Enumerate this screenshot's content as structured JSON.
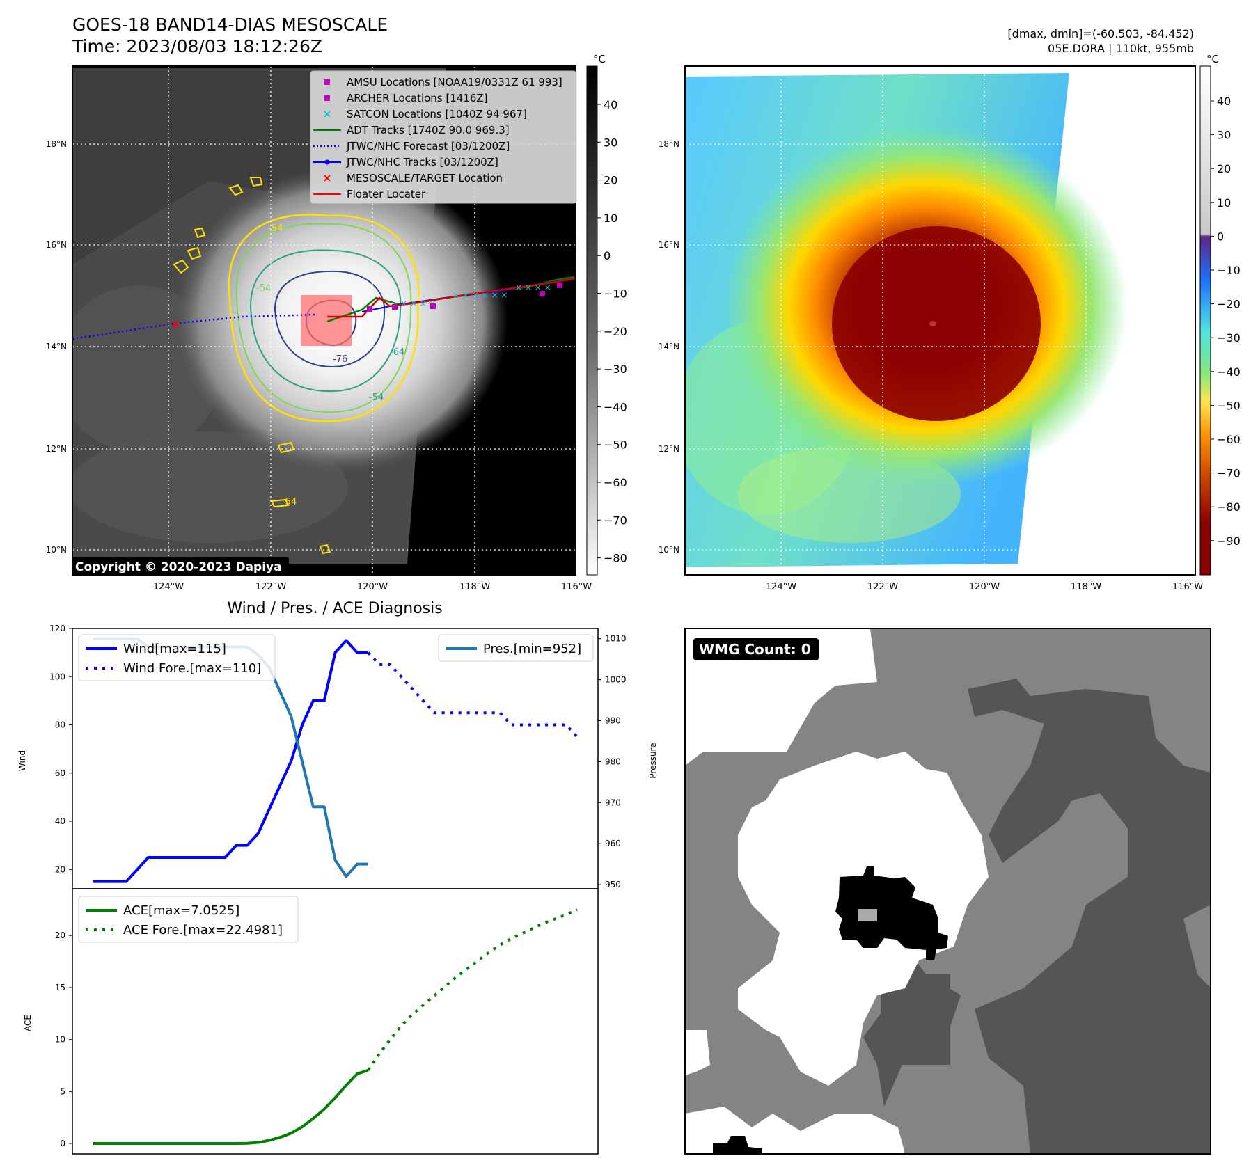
{
  "header": {
    "title": "GOES-18 BAND14-DIAS MESOSCALE",
    "time": "Time: 2023/08/03 18:12:26Z",
    "dmax_dmin": "[dmax, dmin]=(-60.503, -84.452)",
    "storm": "05E.DORA | 110kt, 955mb"
  },
  "copyright": "Copyright © 2020-2023 Dapiya",
  "map": {
    "lat_labels": [
      "18°N",
      "16°N",
      "14°N",
      "12°N",
      "10°N"
    ],
    "lon_labels": [
      "124°W",
      "122°W",
      "120°W",
      "118°W",
      "116°W"
    ]
  },
  "colorbar_gray": {
    "unit": "°C",
    "ticks": [
      "40",
      "30",
      "20",
      "10",
      "0",
      "−10",
      "−20",
      "−30",
      "−40",
      "−50",
      "−60",
      "−70",
      "−80"
    ]
  },
  "colorbar_color": {
    "unit": "°C",
    "ticks": [
      "40",
      "30",
      "20",
      "10",
      "0",
      "−10",
      "−20",
      "−30",
      "−40",
      "−50",
      "−60",
      "−70",
      "−80",
      "−90"
    ]
  },
  "legend_map": [
    {
      "label": "AMSU Locations [NOAA19/0331Z 61 993]",
      "color": "#bf00bf",
      "marker": "square"
    },
    {
      "label": "ARCHER Locations [1416Z]",
      "color": "#bf00bf",
      "marker": "square"
    },
    {
      "label": "SATCON Locations [1040Z 94 967]",
      "color": "#17becf",
      "marker": "x"
    },
    {
      "label": "ADT Tracks [1740Z 90.0 969.3]",
      "color": "#008000",
      "marker": "line"
    },
    {
      "label": "JTWC/NHC Forecast [03/1200Z]",
      "color": "#0000ff",
      "marker": "dotted"
    },
    {
      "label": "JTWC/NHC Tracks [03/1200Z]",
      "color": "#0000ff",
      "marker": "line-dot"
    },
    {
      "label": "MESOSCALE/TARGET Location",
      "color": "#ff0000",
      "marker": "x"
    },
    {
      "label": "Floater Locater",
      "color": "#ff0000",
      "marker": "line"
    }
  ],
  "contour_labels": [
    "-54",
    "-54",
    "-76",
    "-64",
    "-54",
    "-54"
  ],
  "wmg": {
    "label": "WMG Count: 0"
  },
  "colors": {
    "wind": "#0000ff",
    "pres": "#1f77b4",
    "ace": "#008000"
  },
  "chart_data": [
    {
      "type": "line",
      "title": "Wind / Pres. / ACE Diagnosis",
      "ylabel": "Wind",
      "y2label": "Pressure",
      "ylim": [
        12,
        120
      ],
      "y2lim": [
        949,
        1012.5
      ],
      "xlim": [
        0,
        44
      ],
      "yticks": [
        "20",
        "40",
        "60",
        "80",
        "100",
        "120"
      ],
      "y2ticks": [
        "950",
        "960",
        "970",
        "980",
        "990",
        "1000",
        "1010"
      ],
      "series": [
        {
          "name": "Wind[max=115]",
          "style": "solid",
          "axis": "left",
          "x": [
            0,
            1,
            2,
            3,
            4,
            5,
            6,
            7,
            8,
            9,
            10,
            11,
            12,
            13,
            14,
            15,
            16,
            17,
            18,
            19,
            20,
            21,
            22,
            23,
            24,
            25
          ],
          "values": [
            15,
            15,
            15,
            15,
            20,
            25,
            25,
            25,
            25,
            25,
            25,
            25,
            25,
            30,
            30,
            35,
            45,
            55,
            65,
            80,
            90,
            90,
            110,
            115,
            110,
            110
          ]
        },
        {
          "name": "Wind Fore.[max=110]",
          "style": "dotted",
          "axis": "left",
          "x": [
            25,
            26,
            27,
            28,
            29,
            30,
            31,
            32,
            33,
            34,
            35,
            36,
            37,
            38,
            39,
            40,
            41,
            42,
            43,
            44
          ],
          "values": [
            110,
            105,
            105,
            100,
            95,
            90,
            85,
            85,
            85,
            85,
            85,
            85,
            85,
            80,
            80,
            80,
            80,
            80,
            80,
            75
          ]
        },
        {
          "name": "Pres.[min=952]",
          "style": "solid",
          "axis": "right",
          "x": [
            0,
            1,
            2,
            3,
            4,
            5,
            6,
            7,
            8,
            9,
            10,
            11,
            12,
            13,
            14,
            15,
            16,
            17,
            18,
            19,
            20,
            21,
            22,
            23,
            24,
            25
          ],
          "values": [
            1010,
            1010,
            1010,
            1010,
            1010,
            1008,
            1008,
            1008,
            1008,
            1008,
            1008,
            1008,
            1008,
            1008,
            1008,
            1006,
            1003,
            997,
            991,
            980,
            969,
            969,
            956,
            952,
            955,
            955
          ]
        }
      ]
    },
    {
      "type": "line",
      "ylabel": "ACE",
      "ylim": [
        -1,
        24.5
      ],
      "xlim": [
        0,
        44
      ],
      "yticks": [
        "0",
        "5",
        "10",
        "15",
        "20"
      ],
      "series": [
        {
          "name": "ACE[max=7.0525]",
          "style": "solid",
          "axis": "left",
          "x": [
            0,
            1,
            2,
            3,
            4,
            5,
            6,
            7,
            8,
            9,
            10,
            11,
            12,
            13,
            14,
            15,
            16,
            17,
            18,
            19,
            20,
            21,
            22,
            23,
            24,
            25
          ],
          "values": [
            0,
            0,
            0,
            0,
            0,
            0,
            0,
            0,
            0,
            0,
            0,
            0,
            0,
            0,
            0.02,
            0.1,
            0.3,
            0.6,
            1.0,
            1.6,
            2.4,
            3.3,
            4.4,
            5.6,
            6.7,
            7.05
          ]
        },
        {
          "name": "ACE Fore.[max=22.4981]",
          "style": "dotted",
          "axis": "left",
          "x": [
            25,
            26,
            27,
            28,
            29,
            30,
            31,
            32,
            33,
            34,
            35,
            36,
            37,
            38,
            39,
            40,
            41,
            42,
            43,
            44
          ],
          "values": [
            7.05,
            8.6,
            10.0,
            11.3,
            12.4,
            13.3,
            14.2,
            15.1,
            16.0,
            16.8,
            17.6,
            18.4,
            19.1,
            19.7,
            20.2,
            20.7,
            21.2,
            21.6,
            22.0,
            22.5
          ]
        }
      ]
    }
  ]
}
